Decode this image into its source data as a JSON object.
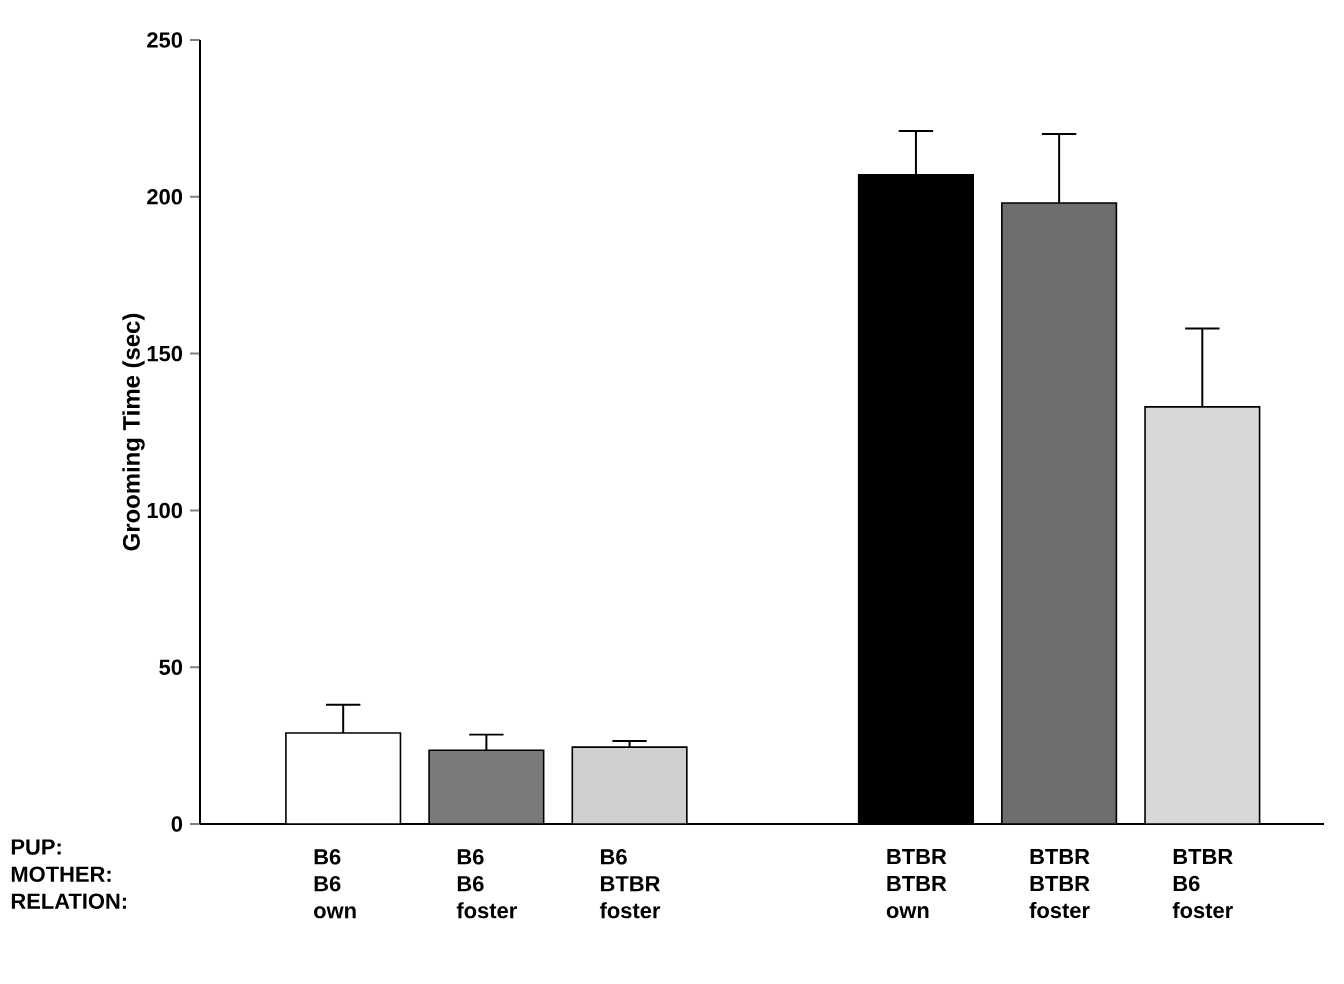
{
  "chart_data": {
    "type": "bar",
    "ylabel": "Grooming Time (sec)",
    "categories": [
      "B6 B6 own",
      "B6 B6 foster",
      "B6 BTBR foster",
      null,
      "BTBR BTBR own",
      "BTBR BTBR foster",
      "BTBR B6 foster"
    ],
    "values": [
      29,
      23.5,
      24.5,
      null,
      207,
      198,
      133
    ],
    "errors": [
      [
        29,
        38
      ],
      [
        23.5,
        28.5
      ],
      [
        24.5,
        26.5
      ],
      null,
      [
        207,
        221
      ],
      [
        198,
        220
      ],
      [
        133,
        158
      ]
    ],
    "colors": [
      "#ffffff",
      "#7a7a7a",
      "#d0d0d0",
      null,
      "#000000",
      "#6e6e6e",
      "#d8d8d8"
    ],
    "ylim": [
      0,
      250
    ],
    "yticks": [
      0,
      50,
      100,
      150,
      200,
      250
    ],
    "annotations": [
      "PUP:",
      "MOTHER:",
      "RELATION:"
    ]
  }
}
